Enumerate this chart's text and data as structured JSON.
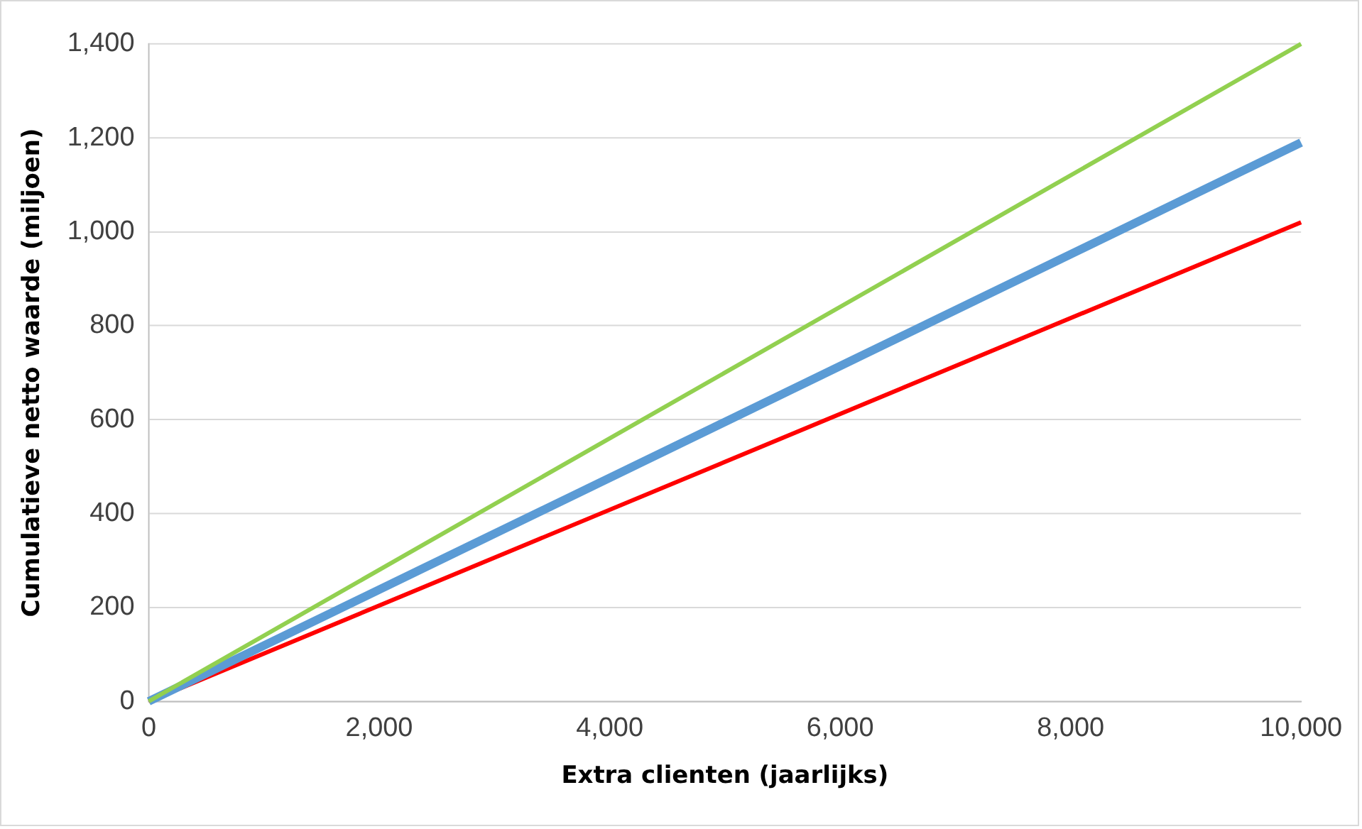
{
  "chart_data": {
    "type": "line",
    "xlabel": "Extra clienten (jaarlijks)",
    "ylabel": "Cumulatieve netto waarde (miljoen)",
    "xlim": [
      0,
      10000
    ],
    "ylim": [
      0,
      1400
    ],
    "xticks": [
      {
        "value": 0,
        "label": "0"
      },
      {
        "value": 2000,
        "label": "2,000"
      },
      {
        "value": 4000,
        "label": "4,000"
      },
      {
        "value": 6000,
        "label": "6,000"
      },
      {
        "value": 8000,
        "label": "8,000"
      },
      {
        "value": 10000,
        "label": "10,000"
      }
    ],
    "yticks": [
      {
        "value": 0,
        "label": "0"
      },
      {
        "value": 200,
        "label": "200"
      },
      {
        "value": 400,
        "label": "400"
      },
      {
        "value": 600,
        "label": "600"
      },
      {
        "value": 800,
        "label": "800"
      },
      {
        "value": 1000,
        "label": "1,000"
      },
      {
        "value": 1200,
        "label": "1,200"
      },
      {
        "value": 1400,
        "label": "1,400"
      }
    ],
    "x": [
      0,
      10000
    ],
    "grid": "y",
    "legend": false,
    "marker": "none",
    "line_style": "solid",
    "series": [
      {
        "color": "#92d050",
        "values": [
          0,
          1400
        ]
      },
      {
        "color": "#5b9bd5",
        "values": [
          0,
          1190
        ]
      },
      {
        "color": "#ff0000",
        "values": [
          0,
          1020
        ]
      }
    ]
  }
}
